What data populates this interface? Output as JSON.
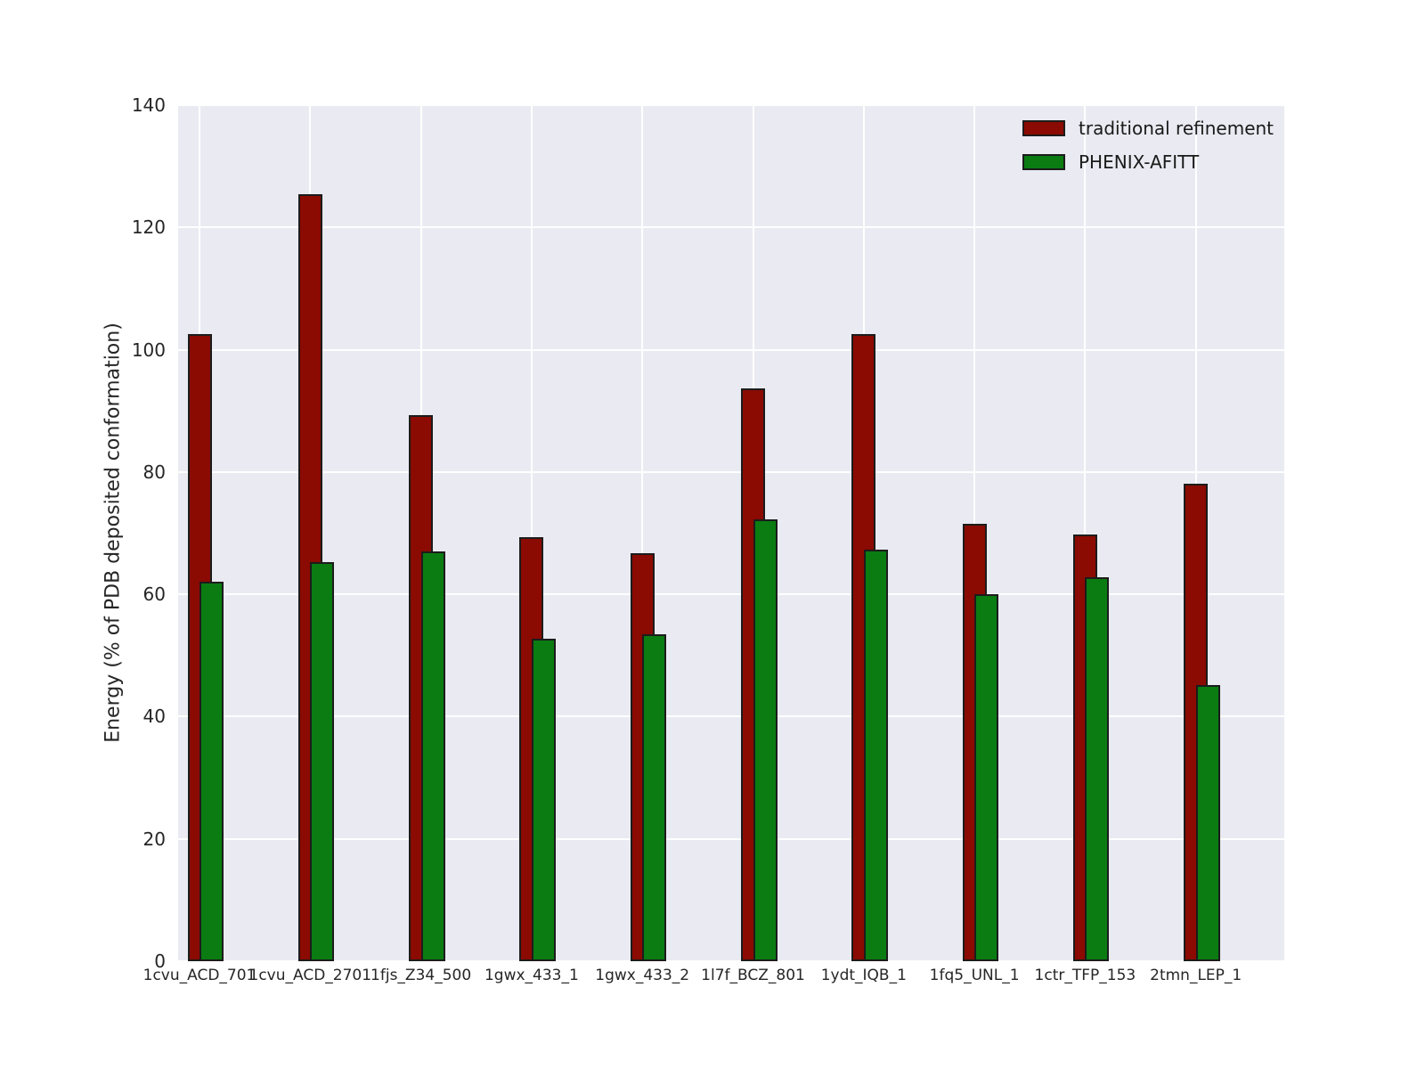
{
  "chart_data": {
    "type": "bar",
    "title": "",
    "xlabel": "",
    "ylabel": "Energy (% of PDB deposited conformation)",
    "ylim": [
      0,
      140
    ],
    "yticks": [
      0,
      20,
      40,
      60,
      80,
      100,
      120,
      140
    ],
    "grid": true,
    "grid_color": "#FFFFFF",
    "plot_bg_color": "#EAEAF2",
    "bar_edge_color": "#1C1C1C",
    "legend_position": "upper right",
    "categories": [
      "1cvu_ACD_701",
      "1cvu_ACD_2701",
      "1fjs_Z34_500",
      "1gwx_433_1",
      "1gwx_433_2",
      "1l7f_BCZ_801",
      "1ydt_IQB_1",
      "1fq5_UNL_1",
      "1ctr_TFP_153",
      "2tmn_LEP_1"
    ],
    "series": [
      {
        "name": "traditional refinement",
        "color": "#8B0A01",
        "values": [
          102.6,
          125.4,
          89.3,
          69.3,
          66.7,
          93.7,
          102.6,
          71.5,
          69.8,
          78.1
        ]
      },
      {
        "name": "PHENIX-AFITT",
        "color": "#0A7C12",
        "values": [
          62.1,
          65.3,
          67.0,
          52.7,
          53.5,
          72.3,
          67.3,
          60.0,
          62.8,
          45.2
        ]
      }
    ]
  }
}
